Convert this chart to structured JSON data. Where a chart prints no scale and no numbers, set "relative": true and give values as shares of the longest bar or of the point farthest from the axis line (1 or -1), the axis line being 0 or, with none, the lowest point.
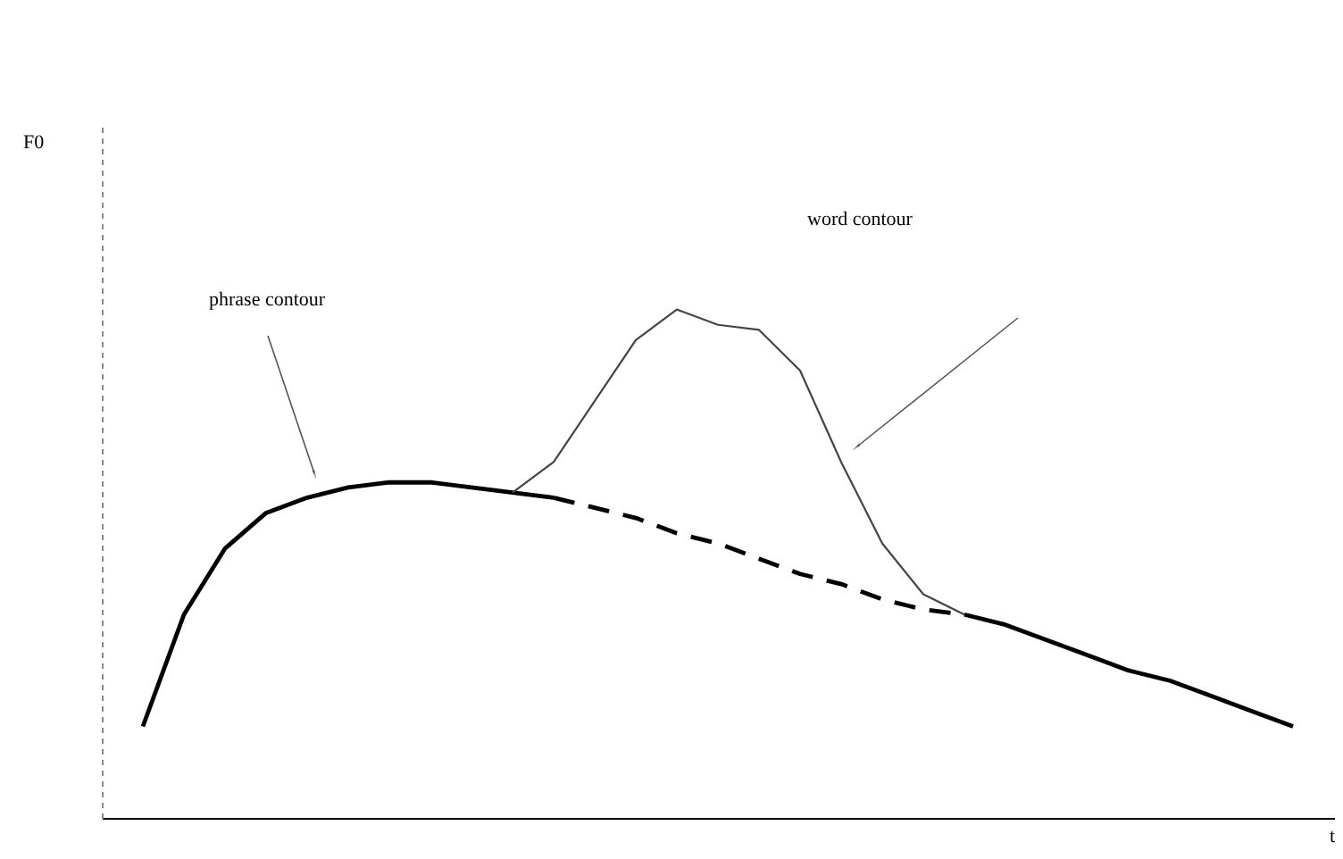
{
  "chart_data": {
    "type": "line",
    "relative": true,
    "xlabel": "t",
    "annotations": [
      "F0",
      "phrase contour",
      "word contour"
    ],
    "categories": [
      null,
      null,
      null,
      null,
      null,
      null,
      null,
      null,
      null,
      null,
      null,
      null,
      null,
      null,
      null,
      null,
      null,
      null,
      null,
      null,
      null,
      null,
      null,
      null,
      null,
      null,
      null,
      null,
      null
    ],
    "series": [
      {
        "color": "#000000",
        "line_style": "solid",
        "values": [
          0.18,
          0.4,
          0.53,
          0.6,
          0.63,
          0.65,
          0.66,
          0.66,
          0.65,
          0.64,
          0.63,
          null,
          null,
          null,
          null,
          null,
          null,
          null,
          null,
          null,
          null,
          null,
          null,
          null,
          null,
          null,
          null,
          null,
          null
        ]
      },
      {
        "color": "#000000",
        "line_style": "solid",
        "values": [
          null,
          null,
          null,
          null,
          null,
          null,
          null,
          null,
          null,
          null,
          null,
          null,
          null,
          null,
          null,
          null,
          null,
          null,
          null,
          null,
          0.4,
          0.38,
          0.35,
          0.32,
          0.29,
          0.27,
          0.24,
          0.21,
          0.18
        ]
      },
      {
        "color": "#000000",
        "line_style": "dashed",
        "values": [
          null,
          null,
          null,
          null,
          null,
          null,
          null,
          null,
          null,
          null,
          0.63,
          0.61,
          0.59,
          0.56,
          0.54,
          0.51,
          0.48,
          0.46,
          0.43,
          0.41,
          0.4,
          null,
          null,
          null,
          null,
          null,
          null,
          null,
          null
        ]
      },
      {
        "color": "#444444",
        "line_style": "solid",
        "values": [
          null,
          null,
          null,
          null,
          null,
          null,
          null,
          null,
          null,
          0.64,
          0.7,
          0.82,
          0.94,
          1.0,
          0.97,
          0.96,
          0.88,
          0.7,
          0.54,
          0.44,
          0.4,
          null,
          null,
          null,
          null,
          null,
          null,
          null,
          null
        ]
      }
    ]
  }
}
